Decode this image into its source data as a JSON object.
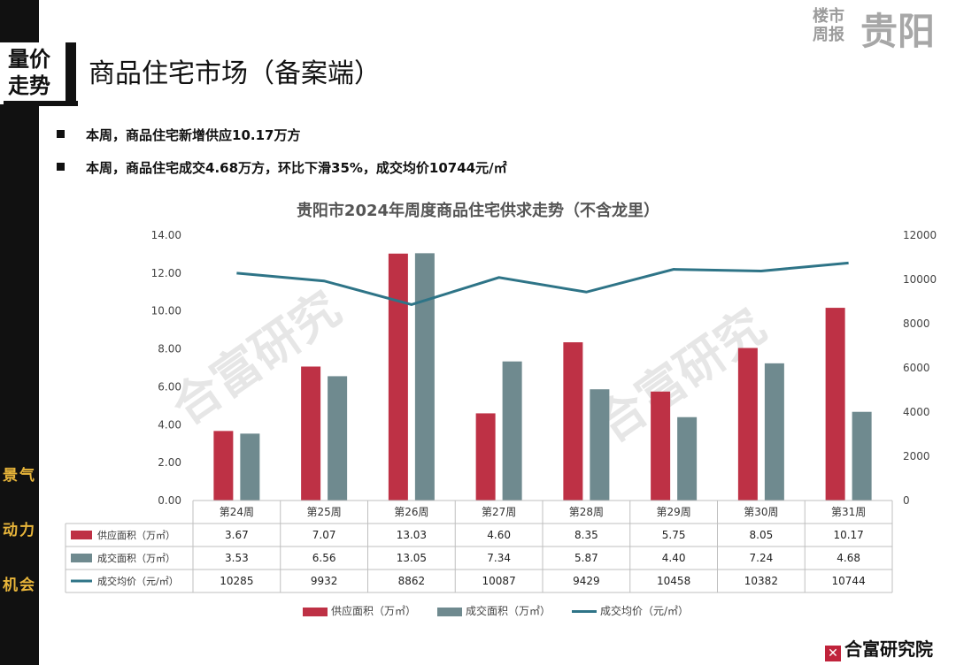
{
  "header": {
    "section_badge": "量价走势",
    "section_badge_lines": [
      "量价",
      "走势"
    ],
    "title": "商品住宅市场（备案端）",
    "brand_small": "楼市周报",
    "brand_small_lines": [
      "楼市",
      "周报"
    ],
    "brand_big": "贵阳"
  },
  "sidebar": {
    "keywords": [
      "景气",
      "动力",
      "机会"
    ]
  },
  "bullets": [
    "本周，商品住宅新增供应10.17万方",
    "本周，商品住宅成交4.68万方，环比下滑35%，成交均价10744元/㎡"
  ],
  "watermark": "合富研究",
  "footer": {
    "logo_text": "合富研究院",
    "logo_mark": "✕"
  },
  "colors": {
    "supply": "#be3145",
    "deal": "#6f8a8f",
    "price": "#2e7487"
  },
  "chart_data": {
    "type": "bar",
    "title": "贵阳市2024年周度商品住宅供求走势（不含龙里）",
    "categories": [
      "第24周",
      "第25周",
      "第26周",
      "第27周",
      "第28周",
      "第29周",
      "第30周",
      "第31周"
    ],
    "series": [
      {
        "name": "供应面积（万㎡）",
        "type": "bar",
        "axis": "left",
        "values": [
          3.67,
          7.07,
          13.03,
          4.6,
          8.35,
          5.75,
          8.05,
          10.17
        ],
        "labels": [
          "3.67",
          "7.07",
          "13.03",
          "4.60",
          "8.35",
          "5.75",
          "8.05",
          "10.17"
        ]
      },
      {
        "name": "成交面积（万㎡）",
        "type": "bar",
        "axis": "left",
        "values": [
          3.53,
          6.56,
          13.05,
          7.34,
          5.87,
          4.4,
          7.24,
          4.68
        ],
        "labels": [
          "3.53",
          "6.56",
          "13.05",
          "7.34",
          "5.87",
          "4.40",
          "7.24",
          "4.68"
        ]
      },
      {
        "name": "成交均价（元/㎡）",
        "type": "line",
        "axis": "right",
        "values": [
          10285,
          9932,
          8862,
          10087,
          9429,
          10458,
          10382,
          10744
        ],
        "labels": [
          "10285",
          "9932",
          "8862",
          "10087",
          "9429",
          "10458",
          "10382",
          "10744"
        ]
      }
    ],
    "y_left": {
      "min": 0,
      "max": 14,
      "ticks": [
        "0.00",
        "2.00",
        "4.00",
        "6.00",
        "8.00",
        "10.00",
        "12.00",
        "14.00"
      ]
    },
    "y_right": {
      "min": 0,
      "max": 12000,
      "ticks": [
        "0",
        "2000",
        "4000",
        "6000",
        "8000",
        "10000",
        "12000"
      ]
    },
    "data_table": true,
    "legend_position": "bottom"
  }
}
